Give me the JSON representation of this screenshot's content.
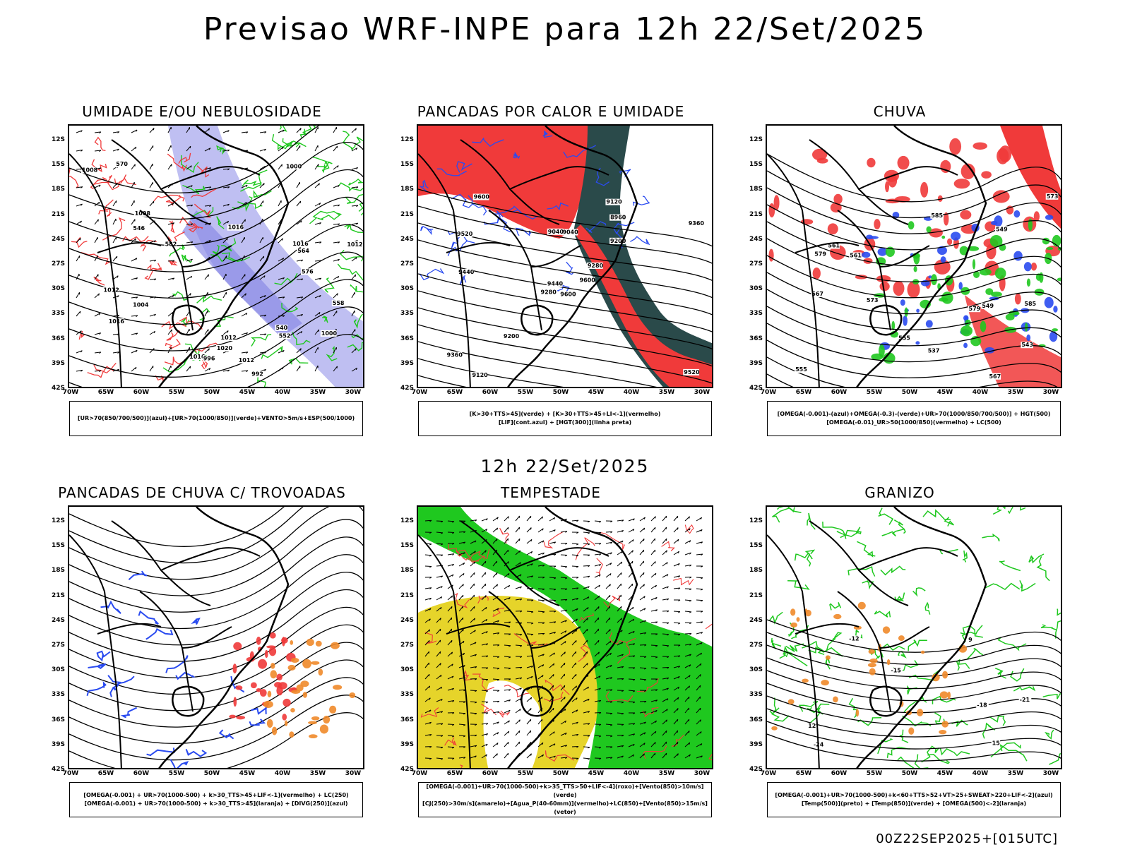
{
  "title": "Previsao WRF-INPE  para 12h 22/Set/2025",
  "subtitle": "12h 22/Set/2025",
  "footer": "00Z22SEP2025+[015UTC]",
  "lat_labels": [
    "12S",
    "15S",
    "18S",
    "21S",
    "24S",
    "27S",
    "30S",
    "33S",
    "36S",
    "39S",
    "42S"
  ],
  "lon_labels": [
    "70W",
    "65W",
    "60W",
    "55W",
    "50W",
    "45W",
    "40W",
    "35W",
    "30W"
  ],
  "colors": {
    "red": "#f03a3a",
    "green": "#1fc81f",
    "blue": "#2a4bf0",
    "orange": "#f08a2a",
    "yellow": "#e6d42a",
    "lavender": "#b4b4f0",
    "darkteal": "#2a4a4a",
    "contour": "#000000"
  },
  "panels": [
    {
      "id": "umidade",
      "title": "UMIDADE E/OU NEBULOSIDADE",
      "legend": [
        "[UR>70(850/700/500)](azul)+[UR>70(1000/850)](verde)+VENTO>5m/s+ESP(500/1000)"
      ],
      "contour_labels": [
        "1016",
        "1012",
        "1016",
        "1008",
        "1012",
        "1016",
        "1020",
        "1012",
        "1016",
        "1008",
        "1004",
        "1000",
        "996",
        "992",
        "1000",
        "1012",
        "540",
        "552",
        "558",
        "564",
        "570",
        "576",
        "546",
        "582"
      ]
    },
    {
      "id": "pancadas-calor",
      "title": "PANCADAS POR CALOR E UMIDADE",
      "legend": [
        "[K>30+TTS>45](verde) + [K>30+TTS>45+LI<-1](vermelho)",
        "[LIF](cont.azul) + [HGT(300)](linha preta)"
      ],
      "contour_labels": [
        "9600",
        "9520",
        "9440",
        "9360",
        "9280",
        "9200",
        "9120",
        "9040",
        "8960",
        "9600",
        "9600",
        "9520",
        "9440",
        "9360",
        "9280",
        "9200",
        "9120",
        "9040"
      ]
    },
    {
      "id": "chuva",
      "title": "CHUVA",
      "legend": [
        "[OMEGA(-0.001)-(azul)+OMEGA(-0.3)-(verde)+UR>70(1000/850/700/500)] + HGT(500)",
        "[OMEGA(-0.01)_UR>50(1000/850)(vermelho) + LC(500)"
      ],
      "contour_labels": [
        "585",
        "579",
        "573",
        "567",
        "561",
        "555",
        "549",
        "543",
        "537",
        "585",
        "579",
        "573",
        "567",
        "561",
        "555",
        "549"
      ]
    },
    {
      "id": "trovoadas",
      "title": "PANCADAS DE CHUVA C/ TROVOADAS",
      "legend": [
        "[OMEGA(-0.001) + UR>70(1000-500) + k>30_TTS>45+LIF<-1](vermelho) + LC(250)",
        "[OMEGA(-0.001) + UR>70(1000-500) + k>30_TTS>45](laranja) + [DIVG(250)](azul)"
      ],
      "contour_labels": []
    },
    {
      "id": "tempestade",
      "title": "TEMPESTADE",
      "legend": [
        "[OMEGA(-0.001)+UR>70(1000-500)+k>35_TTS>50+LIF<-4](roxo)+[Vento(850)>10m/s](verde)",
        "[CJ(250)>30m/s](amarelo)+[Agua_P(40-60mm)](vermelho)+LC(850)+[Vento(850)>15m/s](vetor)"
      ],
      "contour_labels": []
    },
    {
      "id": "granizo",
      "title": "GRANIZO",
      "legend": [
        "[OMEGA(-0.001)+UR>70(1000-500)+k<60+TTS>52+VT>25+SWEAT>220+LIF<-2](azul)",
        "[Temp(500)](preto) + [Temp(850)](verde) + [OMEGA(500)<-2](laranja)"
      ],
      "contour_labels": [
        "-18",
        "-21",
        "-24",
        "-12",
        "-15",
        "15",
        "12",
        "9"
      ]
    }
  ]
}
